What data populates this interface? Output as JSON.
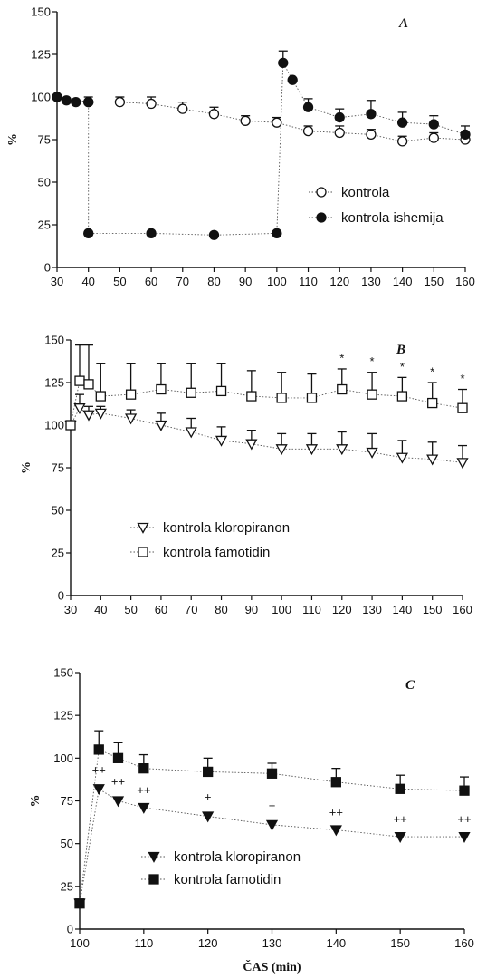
{
  "chart_data": [
    {
      "type": "line",
      "panel_label": "A",
      "ylabel": "%",
      "xlabel": "",
      "xlim": [
        30,
        160
      ],
      "ylim": [
        0,
        150
      ],
      "xticks": [
        30,
        40,
        50,
        60,
        70,
        80,
        90,
        100,
        110,
        120,
        130,
        140,
        150,
        160
      ],
      "yticks": [
        0,
        25,
        50,
        75,
        100,
        125,
        150
      ],
      "legend_position": "bottom-right",
      "series": [
        {
          "name": "kontrola",
          "marker": "circle-open",
          "points": [
            {
              "x": 30,
              "y": 100
            },
            {
              "x": 40,
              "y": 97,
              "err": 3
            },
            {
              "x": 50,
              "y": 97,
              "err": 3
            },
            {
              "x": 60,
              "y": 96,
              "err": 4
            },
            {
              "x": 70,
              "y": 93,
              "err": 4
            },
            {
              "x": 80,
              "y": 90,
              "err": 4
            },
            {
              "x": 90,
              "y": 86,
              "err": 3
            },
            {
              "x": 100,
              "y": 85,
              "err": 3
            },
            {
              "x": 110,
              "y": 80,
              "err": 3
            },
            {
              "x": 120,
              "y": 79,
              "err": 4
            },
            {
              "x": 130,
              "y": 78,
              "err": 3
            },
            {
              "x": 140,
              "y": 74,
              "err": 3
            },
            {
              "x": 150,
              "y": 76,
              "err": 3
            },
            {
              "x": 160,
              "y": 75,
              "err": 2
            }
          ]
        },
        {
          "name": "kontrola ishemija",
          "marker": "circle-filled",
          "points": [
            {
              "x": 30,
              "y": 100
            },
            {
              "x": 33,
              "y": 98
            },
            {
              "x": 36,
              "y": 97
            },
            {
              "x": 40,
              "y": 97
            },
            {
              "x": 40,
              "y": 20
            },
            {
              "x": 60,
              "y": 20
            },
            {
              "x": 80,
              "y": 19
            },
            {
              "x": 100,
              "y": 20
            },
            {
              "x": 102,
              "y": 120,
              "err": 7
            },
            {
              "x": 105,
              "y": 110
            },
            {
              "x": 110,
              "y": 94,
              "err": 5
            },
            {
              "x": 120,
              "y": 88,
              "err": 5
            },
            {
              "x": 130,
              "y": 90,
              "err": 8
            },
            {
              "x": 140,
              "y": 85,
              "err": 6
            },
            {
              "x": 150,
              "y": 84,
              "err": 5
            },
            {
              "x": 160,
              "y": 78,
              "err": 5
            }
          ]
        }
      ]
    },
    {
      "type": "line",
      "panel_label": "B",
      "ylabel": "%",
      "xlabel": "",
      "xlim": [
        30,
        160
      ],
      "ylim": [
        0,
        150
      ],
      "xticks": [
        30,
        40,
        50,
        60,
        70,
        80,
        90,
        100,
        110,
        120,
        130,
        140,
        150,
        160
      ],
      "yticks": [
        0,
        25,
        50,
        75,
        100,
        125,
        150
      ],
      "legend_position": "bottom-left",
      "series": [
        {
          "name": "kontrola kloropiranon",
          "marker": "triangle-down-open",
          "points": [
            {
              "x": 30,
              "y": 100
            },
            {
              "x": 33,
              "y": 110,
              "err": 8
            },
            {
              "x": 36,
              "y": 106,
              "err": 5
            },
            {
              "x": 40,
              "y": 107,
              "err": 4
            },
            {
              "x": 50,
              "y": 104,
              "err": 5
            },
            {
              "x": 60,
              "y": 100,
              "err": 7
            },
            {
              "x": 70,
              "y": 96,
              "err": 8
            },
            {
              "x": 80,
              "y": 91,
              "err": 8
            },
            {
              "x": 90,
              "y": 89,
              "err": 8
            },
            {
              "x": 100,
              "y": 86,
              "err": 9
            },
            {
              "x": 110,
              "y": 86,
              "err": 9
            },
            {
              "x": 120,
              "y": 86,
              "err": 10
            },
            {
              "x": 130,
              "y": 84,
              "err": 11
            },
            {
              "x": 140,
              "y": 81,
              "err": 10
            },
            {
              "x": 150,
              "y": 80,
              "err": 10
            },
            {
              "x": 160,
              "y": 78,
              "err": 10
            }
          ]
        },
        {
          "name": "kontrola famotidin",
          "marker": "square-open",
          "points": [
            {
              "x": 30,
              "y": 100
            },
            {
              "x": 33,
              "y": 126,
              "err": 21
            },
            {
              "x": 36,
              "y": 124,
              "err": 23
            },
            {
              "x": 40,
              "y": 117,
              "err": 19
            },
            {
              "x": 50,
              "y": 118,
              "err": 18
            },
            {
              "x": 60,
              "y": 121,
              "err": 15
            },
            {
              "x": 70,
              "y": 119,
              "err": 17
            },
            {
              "x": 80,
              "y": 120,
              "err": 16
            },
            {
              "x": 90,
              "y": 117,
              "err": 15
            },
            {
              "x": 100,
              "y": 116,
              "err": 15
            },
            {
              "x": 110,
              "y": 116,
              "err": 14
            },
            {
              "x": 120,
              "y": 121,
              "err": 12
            },
            {
              "x": 130,
              "y": 118,
              "err": 13
            },
            {
              "x": 140,
              "y": 117,
              "err": 11
            },
            {
              "x": 150,
              "y": 113,
              "err": 12
            },
            {
              "x": 160,
              "y": 110,
              "err": 11
            }
          ]
        }
      ],
      "annotations": [
        {
          "x": 120,
          "y": 137,
          "text": "*"
        },
        {
          "x": 130,
          "y": 135,
          "text": "*"
        },
        {
          "x": 140,
          "y": 132,
          "text": "*"
        },
        {
          "x": 150,
          "y": 129,
          "text": "*"
        },
        {
          "x": 160,
          "y": 125,
          "text": "*"
        }
      ]
    },
    {
      "type": "line",
      "panel_label": "C",
      "ylabel": "%",
      "xlabel": "ČAS (min)",
      "xlim": [
        100,
        160
      ],
      "ylim": [
        0,
        150
      ],
      "xticks": [
        100,
        110,
        120,
        130,
        140,
        150,
        160
      ],
      "yticks": [
        0,
        25,
        50,
        75,
        100,
        125,
        150
      ],
      "legend_position": "bottom-left",
      "series": [
        {
          "name": "kontrola kloropiranon",
          "marker": "triangle-down-filled",
          "points": [
            {
              "x": 100,
              "y": 15
            },
            {
              "x": 103,
              "y": 82
            },
            {
              "x": 106,
              "y": 75
            },
            {
              "x": 110,
              "y": 71
            },
            {
              "x": 120,
              "y": 66
            },
            {
              "x": 130,
              "y": 61
            },
            {
              "x": 140,
              "y": 58
            },
            {
              "x": 150,
              "y": 54
            },
            {
              "x": 160,
              "y": 54
            }
          ]
        },
        {
          "name": "kontrola famotidin",
          "marker": "square-filled",
          "points": [
            {
              "x": 100,
              "y": 15
            },
            {
              "x": 103,
              "y": 105,
              "err": 11
            },
            {
              "x": 106,
              "y": 100,
              "err": 9
            },
            {
              "x": 110,
              "y": 94,
              "err": 8
            },
            {
              "x": 120,
              "y": 92,
              "err": 8
            },
            {
              "x": 130,
              "y": 91,
              "err": 6
            },
            {
              "x": 140,
              "y": 86,
              "err": 8
            },
            {
              "x": 150,
              "y": 82,
              "err": 8
            },
            {
              "x": 160,
              "y": 81,
              "err": 8
            }
          ]
        }
      ],
      "annotations": [
        {
          "x": 103,
          "y": 91,
          "text": "++"
        },
        {
          "x": 106,
          "y": 84,
          "text": "++"
        },
        {
          "x": 110,
          "y": 79,
          "text": "++"
        },
        {
          "x": 120,
          "y": 75,
          "text": "+"
        },
        {
          "x": 130,
          "y": 70,
          "text": "+"
        },
        {
          "x": 140,
          "y": 66,
          "text": "++"
        },
        {
          "x": 150,
          "y": 62,
          "text": "++"
        },
        {
          "x": 160,
          "y": 62,
          "text": "++"
        }
      ]
    }
  ]
}
